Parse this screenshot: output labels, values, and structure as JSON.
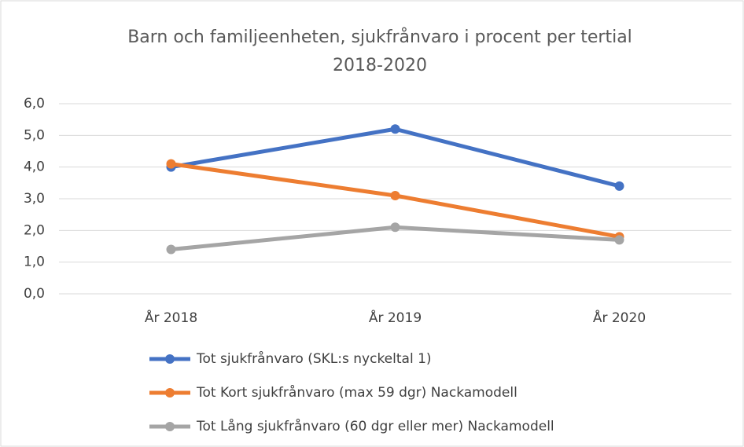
{
  "chart_data": {
    "type": "line",
    "title": [
      "Barn och familjeenheten, sjukfrånvaro i procent per tertial",
      "2018-2020"
    ],
    "categories": [
      "År 2018",
      "År 2019",
      "År 2020"
    ],
    "series": [
      {
        "name": "Tot sjukfrånvaro (SKL:s nyckeltal 1)",
        "color": "#4472c4",
        "values": [
          4.0,
          5.2,
          3.4
        ]
      },
      {
        "name": "Tot Kort sjukfrånvaro (max 59 dgr) Nackamodell",
        "color": "#ed7d31",
        "values": [
          4.1,
          3.1,
          1.8
        ]
      },
      {
        "name": "Tot Lång sjukfrånvaro (60 dgr eller mer)  Nackamodell",
        "color": "#a5a5a5",
        "values": [
          1.4,
          2.1,
          1.7
        ]
      }
    ],
    "ylim": [
      0,
      6
    ],
    "yticks": [
      {
        "value": 0,
        "label": "0,0"
      },
      {
        "value": 1,
        "label": "1,0"
      },
      {
        "value": 2,
        "label": "2,0"
      },
      {
        "value": 3,
        "label": "3,0"
      },
      {
        "value": 4,
        "label": "4,0"
      },
      {
        "value": 5,
        "label": "5,0"
      },
      {
        "value": 6,
        "label": "6,0"
      }
    ],
    "grid": true,
    "legend": "bottom"
  }
}
